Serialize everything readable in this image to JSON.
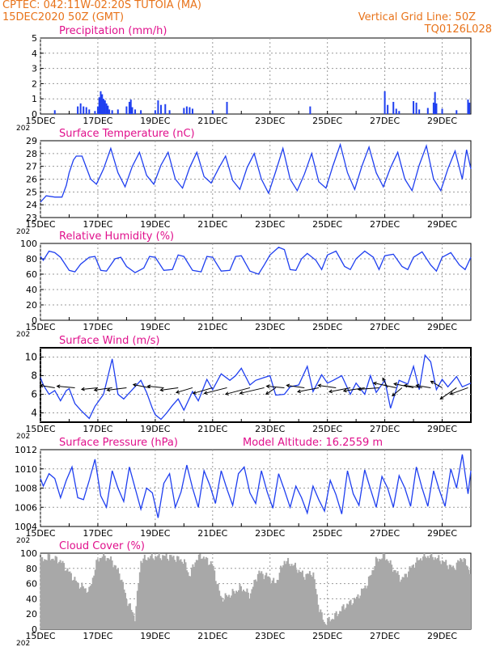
{
  "header": {
    "line1_left": "CPTEC:   042:11W-02:20S   TUTOIA (MA)",
    "line2_left": "15DEC2020 50Z (GMT)",
    "line2_right": "Vertical Grid Line: 50Z",
    "line3_right": "TQ0126L028"
  },
  "colors": {
    "header": "#e8731a",
    "title": "#e0108c",
    "series": "#1f3ff0",
    "cloud": "#a8a8a8",
    "axis": "#000000",
    "grid": "#9a9a9a"
  },
  "x_axis": {
    "tick_labels": [
      "15DEC",
      "17DEC",
      "19DEC",
      "21DEC",
      "23DEC",
      "25DEC",
      "27DEC",
      "29DEC"
    ],
    "tick_days": [
      15,
      17,
      19,
      21,
      23,
      25,
      27,
      29
    ],
    "year_label": "202",
    "range_days": [
      15,
      30
    ]
  },
  "chart_data": [
    {
      "type": "bar",
      "title": "Precipitation (mm/h)",
      "ylim": [
        0,
        5
      ],
      "yticks": [
        0,
        1,
        2,
        3,
        4,
        5
      ],
      "grid": true,
      "bars": [
        [
          15.5,
          0.25
        ],
        [
          16.3,
          0.5
        ],
        [
          16.4,
          0.7
        ],
        [
          16.5,
          0.5
        ],
        [
          16.6,
          0.45
        ],
        [
          16.7,
          0.3
        ],
        [
          16.9,
          0.2
        ],
        [
          17.0,
          0.5
        ],
        [
          17.05,
          1.1
        ],
        [
          17.1,
          1.5
        ],
        [
          17.15,
          1.3
        ],
        [
          17.2,
          1.0
        ],
        [
          17.25,
          0.9
        ],
        [
          17.3,
          0.7
        ],
        [
          17.35,
          0.55
        ],
        [
          17.4,
          0.3
        ],
        [
          17.5,
          0.25
        ],
        [
          17.7,
          0.3
        ],
        [
          18.0,
          0.5
        ],
        [
          18.1,
          0.8
        ],
        [
          18.15,
          0.95
        ],
        [
          18.2,
          0.45
        ],
        [
          18.3,
          0.3
        ],
        [
          18.5,
          0.25
        ],
        [
          19.0,
          0.25
        ],
        [
          19.1,
          0.9
        ],
        [
          19.2,
          0.6
        ],
        [
          19.35,
          0.65
        ],
        [
          19.5,
          0.25
        ],
        [
          20.0,
          0.4
        ],
        [
          20.1,
          0.5
        ],
        [
          20.2,
          0.45
        ],
        [
          20.3,
          0.35
        ],
        [
          21.0,
          0.25
        ],
        [
          21.5,
          0.8
        ],
        [
          24.4,
          0.5
        ],
        [
          27.0,
          1.5
        ],
        [
          27.1,
          0.6
        ],
        [
          27.3,
          0.8
        ],
        [
          27.4,
          0.35
        ],
        [
          27.5,
          0.2
        ],
        [
          28.0,
          0.85
        ],
        [
          28.1,
          0.75
        ],
        [
          28.2,
          0.3
        ],
        [
          28.5,
          0.4
        ],
        [
          28.7,
          0.75
        ],
        [
          28.75,
          1.45
        ],
        [
          28.8,
          0.7
        ],
        [
          29.0,
          0.35
        ],
        [
          29.5,
          0.25
        ],
        [
          29.9,
          0.95
        ],
        [
          29.95,
          0.75
        ]
      ]
    },
    {
      "type": "line",
      "title": "Surface Temperature (nC)",
      "ylim": [
        23,
        29
      ],
      "yticks": [
        23,
        24,
        25,
        26,
        27,
        28,
        29
      ],
      "grid": true,
      "series": [
        {
          "x": [
            15.0,
            15.2,
            15.5,
            15.75,
            15.9,
            16.0,
            16.15,
            16.25,
            16.45,
            16.75,
            16.95,
            17.2,
            17.45,
            17.7,
            17.95,
            18.2,
            18.45,
            18.7,
            18.95,
            19.2,
            19.45,
            19.7,
            19.95,
            20.2,
            20.45,
            20.7,
            20.95,
            21.2,
            21.45,
            21.7,
            21.95,
            22.2,
            22.45,
            22.7,
            22.95,
            23.2,
            23.45,
            23.7,
            23.95,
            24.2,
            24.45,
            24.7,
            24.95,
            25.2,
            25.45,
            25.7,
            25.95,
            26.2,
            26.45,
            26.7,
            26.95,
            27.2,
            27.45,
            27.7,
            27.95,
            28.2,
            28.45,
            28.7,
            28.95,
            29.2,
            29.45,
            29.7,
            29.85,
            30.0
          ],
          "y": [
            24.2,
            24.7,
            24.6,
            24.6,
            25.5,
            26.5,
            27.5,
            27.8,
            27.8,
            26.0,
            25.6,
            26.8,
            28.4,
            26.5,
            25.4,
            27.0,
            28.1,
            26.3,
            25.6,
            27.1,
            28.1,
            26.0,
            25.3,
            26.9,
            28.1,
            26.2,
            25.7,
            26.8,
            27.8,
            25.9,
            25.2,
            26.9,
            28.0,
            26.0,
            24.9,
            26.6,
            28.4,
            26.0,
            25.1,
            26.4,
            28.0,
            25.8,
            25.3,
            27.1,
            28.7,
            26.5,
            25.2,
            27.0,
            28.5,
            26.5,
            25.4,
            26.9,
            28.1,
            26.0,
            25.1,
            27.1,
            28.6,
            26.0,
            25.1,
            26.8,
            28.2,
            26.0,
            28.3,
            26.8
          ]
        }
      ]
    },
    {
      "type": "line",
      "title": "Relative Humidity (%)",
      "ylim": [
        0,
        100
      ],
      "yticks": [
        0,
        20,
        40,
        60,
        80,
        100
      ],
      "grid": true,
      "series": [
        {
          "x": [
            15.0,
            15.1,
            15.3,
            15.5,
            15.7,
            16.0,
            16.2,
            16.4,
            16.7,
            16.9,
            17.1,
            17.3,
            17.6,
            17.8,
            18.0,
            18.3,
            18.6,
            18.8,
            19.0,
            19.3,
            19.6,
            19.8,
            20.0,
            20.3,
            20.6,
            20.8,
            21.0,
            21.3,
            21.6,
            21.8,
            22.0,
            22.3,
            22.6,
            22.8,
            23.0,
            23.3,
            23.5,
            23.7,
            23.9,
            24.1,
            24.3,
            24.6,
            24.8,
            25.0,
            25.3,
            25.6,
            25.8,
            26.0,
            26.3,
            26.6,
            26.8,
            27.0,
            27.3,
            27.6,
            27.8,
            28.0,
            28.3,
            28.6,
            28.8,
            29.0,
            29.3,
            29.6,
            29.8,
            30.0
          ],
          "y": [
            83,
            78,
            90,
            88,
            82,
            65,
            63,
            73,
            82,
            83,
            65,
            64,
            80,
            82,
            70,
            62,
            68,
            83,
            82,
            65,
            66,
            85,
            83,
            65,
            63,
            83,
            82,
            64,
            65,
            83,
            84,
            64,
            60,
            72,
            85,
            95,
            92,
            66,
            65,
            80,
            87,
            78,
            66,
            85,
            90,
            70,
            66,
            80,
            90,
            82,
            66,
            84,
            86,
            70,
            66,
            82,
            89,
            72,
            64,
            82,
            88,
            72,
            66,
            82
          ]
        }
      ]
    },
    {
      "type": "line",
      "title": "Surface Wind (m/s)",
      "ylim": [
        3,
        11
      ],
      "yticks": [
        4,
        6,
        8,
        10
      ],
      "grid": true,
      "series": [
        {
          "x": [
            15.0,
            15.1,
            15.3,
            15.5,
            15.7,
            15.9,
            16.0,
            16.2,
            16.4,
            16.7,
            16.9,
            17.2,
            17.5,
            17.7,
            17.9,
            18.2,
            18.5,
            18.7,
            18.9,
            19.0,
            19.2,
            19.4,
            19.6,
            19.8,
            20.0,
            20.3,
            20.5,
            20.8,
            21.0,
            21.3,
            21.6,
            21.8,
            22.0,
            22.3,
            22.5,
            22.8,
            23.0,
            23.2,
            23.5,
            23.7,
            24.0,
            24.3,
            24.5,
            24.8,
            25.0,
            25.2,
            25.5,
            25.8,
            26.0,
            26.3,
            26.5,
            26.7,
            27.0,
            27.2,
            27.5,
            27.8,
            28.0,
            28.2,
            28.4,
            28.6,
            28.8,
            29.0,
            29.2,
            29.5,
            29.7,
            30.0
          ],
          "y": [
            7.8,
            7.0,
            6.0,
            6.4,
            5.3,
            6.4,
            6.6,
            5.0,
            4.3,
            3.4,
            4.7,
            6.0,
            9.8,
            6.0,
            5.5,
            6.5,
            7.5,
            6.2,
            4.5,
            3.8,
            3.3,
            4.0,
            4.8,
            5.5,
            4.3,
            6.3,
            5.3,
            7.6,
            6.5,
            8.2,
            7.5,
            8.0,
            8.8,
            7.0,
            7.5,
            7.8,
            8.0,
            5.9,
            6.0,
            6.8,
            7.0,
            9.0,
            6.3,
            8.1,
            7.2,
            7.5,
            8.0,
            6.0,
            7.2,
            6.0,
            8.0,
            6.2,
            7.5,
            4.5,
            7.5,
            7.1,
            9.0,
            6.5,
            10.2,
            9.5,
            6.5,
            7.6,
            6.8,
            7.9,
            6.8,
            7.2
          ]
        }
      ],
      "arrows": [
        [
          15.5,
          -18,
          -3
        ],
        [
          16.2,
          -22,
          -2
        ],
        [
          17.0,
          -20,
          2
        ],
        [
          17.5,
          -22,
          3
        ],
        [
          18.0,
          -24,
          3
        ],
        [
          18.8,
          -20,
          -4
        ],
        [
          19.3,
          -20,
          -2
        ],
        [
          19.8,
          -22,
          3
        ],
        [
          20.3,
          -20,
          6
        ],
        [
          21.0,
          -24,
          7
        ],
        [
          21.5,
          -28,
          7
        ],
        [
          22.3,
          -30,
          8
        ],
        [
          22.8,
          -30,
          7
        ],
        [
          23.2,
          -12,
          8
        ],
        [
          23.5,
          -22,
          -2
        ],
        [
          24.2,
          -22,
          -3
        ],
        [
          24.7,
          -26,
          5
        ],
        [
          25.3,
          -22,
          -3
        ],
        [
          25.8,
          -26,
          5
        ],
        [
          26.3,
          -26,
          4
        ],
        [
          26.8,
          -26,
          2
        ],
        [
          27.1,
          -6,
          -12
        ],
        [
          27.4,
          -28,
          -6
        ],
        [
          27.6,
          -12,
          10
        ],
        [
          28.0,
          -24,
          -5
        ],
        [
          28.3,
          -22,
          -3
        ],
        [
          28.6,
          -18,
          -3
        ],
        [
          29.0,
          -14,
          -8
        ],
        [
          29.5,
          -20,
          14
        ],
        [
          29.9,
          -22,
          8
        ]
      ]
    },
    {
      "type": "line",
      "title": "Surface Pressure (hPa)",
      "annotation": "Model Altitude: 16.2559 m",
      "ylim": [
        1004,
        1012
      ],
      "yticks": [
        1004,
        1006,
        1008,
        1010,
        1012
      ],
      "grid": true,
      "series": [
        {
          "x": [
            15.0,
            15.1,
            15.3,
            15.5,
            15.7,
            15.9,
            16.1,
            16.3,
            16.5,
            16.7,
            16.9,
            17.1,
            17.3,
            17.5,
            17.7,
            17.9,
            18.1,
            18.3,
            18.5,
            18.7,
            18.9,
            19.1,
            19.3,
            19.5,
            19.7,
            19.9,
            20.1,
            20.3,
            20.5,
            20.7,
            20.9,
            21.1,
            21.3,
            21.5,
            21.7,
            21.9,
            22.1,
            22.3,
            22.5,
            22.7,
            22.9,
            23.1,
            23.3,
            23.5,
            23.7,
            23.9,
            24.1,
            24.3,
            24.5,
            24.7,
            24.9,
            25.1,
            25.3,
            25.5,
            25.7,
            25.9,
            26.1,
            26.3,
            26.5,
            26.7,
            26.9,
            27.1,
            27.3,
            27.5,
            27.7,
            27.9,
            28.1,
            28.3,
            28.5,
            28.7,
            28.9,
            29.1,
            29.3,
            29.5,
            29.7,
            29.9,
            30.0
          ],
          "y": [
            1009.0,
            1008.2,
            1009.5,
            1009.0,
            1007.0,
            1008.8,
            1010.2,
            1007.0,
            1006.8,
            1008.8,
            1011.0,
            1007.2,
            1006.0,
            1009.8,
            1008.0,
            1006.6,
            1010.2,
            1008.0,
            1005.8,
            1008.0,
            1007.5,
            1004.9,
            1008.5,
            1009.5,
            1006.0,
            1007.6,
            1010.4,
            1008.0,
            1006.0,
            1009.8,
            1008.3,
            1006.4,
            1009.8,
            1007.9,
            1006.2,
            1009.5,
            1010.2,
            1007.5,
            1006.4,
            1009.8,
            1007.6,
            1005.9,
            1009.5,
            1007.8,
            1006.0,
            1008.2,
            1007.0,
            1005.4,
            1008.2,
            1006.8,
            1005.6,
            1008.8,
            1007.3,
            1005.3,
            1009.8,
            1007.4,
            1006.2,
            1009.9,
            1007.9,
            1006.0,
            1009.2,
            1008.0,
            1006.0,
            1009.3,
            1008.0,
            1006.1,
            1010.2,
            1008.0,
            1006.1,
            1009.8,
            1007.8,
            1006.1,
            1010.0,
            1008.0,
            1011.5,
            1007.4,
            1009.8
          ]
        }
      ]
    },
    {
      "type": "bar",
      "title": "Cloud Cover (%)",
      "ylim": [
        0,
        100
      ],
      "yticks": [
        0,
        20,
        40,
        60,
        80,
        100
      ],
      "grid": true,
      "profile": [
        [
          15.0,
          90
        ],
        [
          15.3,
          95
        ],
        [
          15.7,
          90
        ],
        [
          16.0,
          75
        ],
        [
          16.3,
          60
        ],
        [
          16.7,
          50
        ],
        [
          17.0,
          92
        ],
        [
          17.2,
          97
        ],
        [
          17.5,
          90
        ],
        [
          17.8,
          70
        ],
        [
          18.0,
          40
        ],
        [
          18.3,
          15
        ],
        [
          18.5,
          90
        ],
        [
          18.8,
          95
        ],
        [
          19.2,
          96
        ],
        [
          19.6,
          95
        ],
        [
          20.0,
          90
        ],
        [
          20.2,
          70
        ],
        [
          20.4,
          90
        ],
        [
          20.6,
          97
        ],
        [
          21.0,
          85
        ],
        [
          21.3,
          40
        ],
        [
          21.6,
          45
        ],
        [
          22.0,
          55
        ],
        [
          22.3,
          45
        ],
        [
          22.6,
          75
        ],
        [
          22.9,
          70
        ],
        [
          23.2,
          60
        ],
        [
          23.5,
          90
        ],
        [
          23.8,
          85
        ],
        [
          24.2,
          70
        ],
        [
          24.5,
          75
        ],
        [
          24.7,
          30
        ],
        [
          24.9,
          8
        ],
        [
          25.2,
          15
        ],
        [
          25.6,
          30
        ],
        [
          26.0,
          40
        ],
        [
          26.4,
          60
        ],
        [
          26.7,
          90
        ],
        [
          27.0,
          97
        ],
        [
          27.3,
          80
        ],
        [
          27.6,
          65
        ],
        [
          28.0,
          85
        ],
        [
          28.3,
          95
        ],
        [
          28.6,
          97
        ],
        [
          29.0,
          90
        ],
        [
          29.4,
          80
        ],
        [
          29.7,
          95
        ],
        [
          30.0,
          75
        ]
      ]
    }
  ]
}
